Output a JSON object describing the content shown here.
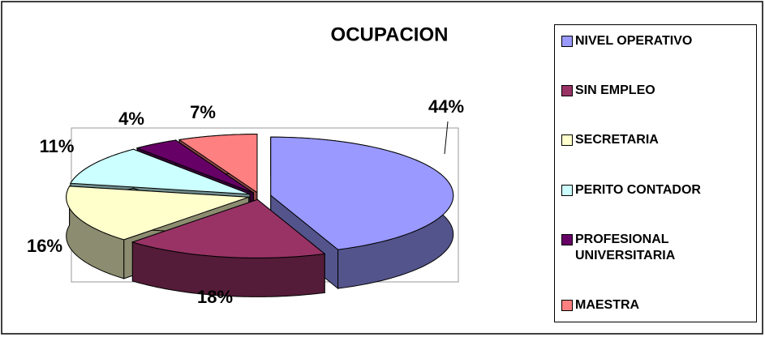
{
  "chart_data": {
    "type": "pie3d",
    "title": "OCUPACION",
    "categories": [
      "NIVEL OPERATIVO",
      "SIN EMPLEO",
      "SECRETARIA",
      "PERITO CONTADOR",
      "PROFESIONAL UNIVERSITARIA",
      "MAESTRA"
    ],
    "values": [
      44,
      18,
      16,
      11,
      4,
      7
    ],
    "value_labels": [
      "44%",
      "18%",
      "16%",
      "11%",
      "4%",
      "7%"
    ],
    "colors": [
      "#9999ff",
      "#993366",
      "#ffffcc",
      "#ccffff",
      "#660066",
      "#ff8080"
    ],
    "legend": "right"
  }
}
